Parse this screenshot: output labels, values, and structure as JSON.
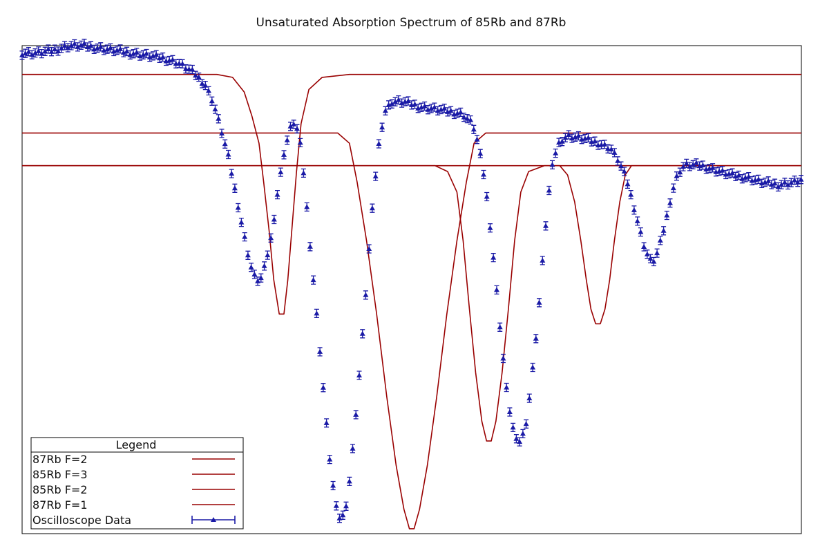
{
  "chart_data": {
    "type": "line",
    "title": "Unsaturated Absorption Spectrum of 85Rb and 87Rb",
    "xlabel": "",
    "ylabel": "",
    "xlim": [
      0,
      1
    ],
    "ylim": [
      0,
      1
    ],
    "x_ticks_shown": false,
    "y_ticks_shown": false,
    "grid": false,
    "legend": {
      "title": "Legend",
      "placement": "bottom-left",
      "entries": [
        "87Rb F=2",
        "85Rb F=3",
        "85Rb F=2",
        "87Rb F=1",
        "Oscilloscope Data"
      ]
    },
    "colors": {
      "fit": "#990000",
      "data": "#1a1aa6"
    },
    "series": [
      {
        "name": "87Rb F=2",
        "style": "line",
        "points": [
          [
            0.0,
            0.941
          ],
          [
            0.25,
            0.941
          ],
          [
            0.27,
            0.935
          ],
          [
            0.285,
            0.905
          ],
          [
            0.295,
            0.855
          ],
          [
            0.304,
            0.8
          ],
          [
            0.31,
            0.72
          ],
          [
            0.317,
            0.62
          ],
          [
            0.323,
            0.52
          ],
          [
            0.33,
            0.45
          ],
          [
            0.336,
            0.45
          ],
          [
            0.341,
            0.52
          ],
          [
            0.346,
            0.62
          ],
          [
            0.352,
            0.74
          ],
          [
            0.358,
            0.84
          ],
          [
            0.368,
            0.91
          ],
          [
            0.385,
            0.935
          ],
          [
            0.42,
            0.941
          ],
          [
            1.0,
            0.941
          ]
        ]
      },
      {
        "name": "85Rb F=3",
        "style": "line",
        "points": [
          [
            0.0,
            0.821
          ],
          [
            0.405,
            0.821
          ],
          [
            0.42,
            0.8
          ],
          [
            0.43,
            0.72
          ],
          [
            0.442,
            0.6
          ],
          [
            0.455,
            0.45
          ],
          [
            0.468,
            0.28
          ],
          [
            0.48,
            0.14
          ],
          [
            0.49,
            0.05
          ],
          [
            0.497,
            0.01
          ],
          [
            0.503,
            0.01
          ],
          [
            0.51,
            0.05
          ],
          [
            0.52,
            0.14
          ],
          [
            0.532,
            0.28
          ],
          [
            0.545,
            0.45
          ],
          [
            0.558,
            0.6
          ],
          [
            0.57,
            0.72
          ],
          [
            0.58,
            0.8
          ],
          [
            0.595,
            0.821
          ],
          [
            1.0,
            0.821
          ]
        ]
      },
      {
        "name": "85Rb F=2",
        "style": "line",
        "points": [
          [
            0.0,
            0.754
          ],
          [
            0.69,
            0.754
          ],
          [
            0.7,
            0.735
          ],
          [
            0.709,
            0.68
          ],
          [
            0.717,
            0.6
          ],
          [
            0.724,
            0.52
          ],
          [
            0.73,
            0.46
          ],
          [
            0.736,
            0.43
          ],
          [
            0.742,
            0.43
          ],
          [
            0.748,
            0.46
          ],
          [
            0.754,
            0.52
          ],
          [
            0.76,
            0.6
          ],
          [
            0.767,
            0.68
          ],
          [
            0.774,
            0.735
          ],
          [
            0.782,
            0.754
          ],
          [
            1.0,
            0.754
          ]
        ]
      },
      {
        "name": "87Rb F=1",
        "style": "line",
        "points": [
          [
            0.0,
            0.754
          ],
          [
            0.47,
            0.754
          ],
          [
            0.53,
            0.754
          ],
          [
            0.546,
            0.742
          ],
          [
            0.558,
            0.7
          ],
          [
            0.566,
            0.6
          ],
          [
            0.574,
            0.46
          ],
          [
            0.582,
            0.33
          ],
          [
            0.59,
            0.23
          ],
          [
            0.596,
            0.19
          ],
          [
            0.602,
            0.19
          ],
          [
            0.608,
            0.23
          ],
          [
            0.616,
            0.33
          ],
          [
            0.624,
            0.46
          ],
          [
            0.632,
            0.6
          ],
          [
            0.64,
            0.7
          ],
          [
            0.65,
            0.742
          ],
          [
            0.67,
            0.754
          ],
          [
            1.0,
            0.754
          ]
        ]
      },
      {
        "name": "Oscilloscope Data",
        "style": "points-with-error-bars",
        "points": [
          [
            0.0,
            0.985
          ],
          [
            0.02,
            0.985
          ],
          [
            0.04,
            0.99
          ],
          [
            0.06,
            1.0
          ],
          [
            0.08,
            1.0
          ],
          [
            0.1,
            0.995
          ],
          [
            0.12,
            0.99
          ],
          [
            0.14,
            0.985
          ],
          [
            0.16,
            0.98
          ],
          [
            0.18,
            0.975
          ],
          [
            0.2,
            0.965
          ],
          [
            0.22,
            0.945
          ],
          [
            0.235,
            0.92
          ],
          [
            0.245,
            0.885
          ],
          [
            0.255,
            0.83
          ],
          [
            0.265,
            0.77
          ],
          [
            0.275,
            0.69
          ],
          [
            0.285,
            0.61
          ],
          [
            0.293,
            0.55
          ],
          [
            0.3,
            0.52
          ],
          [
            0.306,
            0.52
          ],
          [
            0.312,
            0.55
          ],
          [
            0.32,
            0.61
          ],
          [
            0.328,
            0.7
          ],
          [
            0.336,
            0.78
          ],
          [
            0.344,
            0.83
          ],
          [
            0.35,
            0.845
          ],
          [
            0.356,
            0.81
          ],
          [
            0.362,
            0.73
          ],
          [
            0.368,
            0.62
          ],
          [
            0.375,
            0.5
          ],
          [
            0.382,
            0.38
          ],
          [
            0.388,
            0.27
          ],
          [
            0.393,
            0.18
          ],
          [
            0.398,
            0.11
          ],
          [
            0.402,
            0.06
          ],
          [
            0.406,
            0.035
          ],
          [
            0.41,
            0.03
          ],
          [
            0.414,
            0.045
          ],
          [
            0.418,
            0.08
          ],
          [
            0.423,
            0.15
          ],
          [
            0.428,
            0.24
          ],
          [
            0.434,
            0.35
          ],
          [
            0.44,
            0.47
          ],
          [
            0.446,
            0.6
          ],
          [
            0.452,
            0.71
          ],
          [
            0.458,
            0.8
          ],
          [
            0.465,
            0.865
          ],
          [
            0.475,
            0.885
          ],
          [
            0.49,
            0.885
          ],
          [
            0.51,
            0.875
          ],
          [
            0.53,
            0.87
          ],
          [
            0.55,
            0.865
          ],
          [
            0.565,
            0.86
          ],
          [
            0.578,
            0.84
          ],
          [
            0.585,
            0.8
          ],
          [
            0.592,
            0.74
          ],
          [
            0.598,
            0.67
          ],
          [
            0.604,
            0.58
          ],
          [
            0.61,
            0.48
          ],
          [
            0.616,
            0.38
          ],
          [
            0.622,
            0.29
          ],
          [
            0.628,
            0.23
          ],
          [
            0.634,
            0.19
          ],
          [
            0.64,
            0.19
          ],
          [
            0.646,
            0.22
          ],
          [
            0.652,
            0.29
          ],
          [
            0.658,
            0.38
          ],
          [
            0.664,
            0.48
          ],
          [
            0.67,
            0.6
          ],
          [
            0.676,
            0.7
          ],
          [
            0.682,
            0.77
          ],
          [
            0.69,
            0.805
          ],
          [
            0.7,
            0.815
          ],
          [
            0.72,
            0.81
          ],
          [
            0.74,
            0.8
          ],
          [
            0.755,
            0.79
          ],
          [
            0.765,
            0.765
          ],
          [
            0.775,
            0.73
          ],
          [
            0.785,
            0.67
          ],
          [
            0.793,
            0.62
          ],
          [
            0.8,
            0.58
          ],
          [
            0.806,
            0.56
          ],
          [
            0.812,
            0.56
          ],
          [
            0.818,
            0.59
          ],
          [
            0.826,
            0.64
          ],
          [
            0.834,
            0.7
          ],
          [
            0.842,
            0.74
          ],
          [
            0.85,
            0.755
          ],
          [
            0.87,
            0.755
          ],
          [
            0.89,
            0.745
          ],
          [
            0.91,
            0.735
          ],
          [
            0.93,
            0.73
          ],
          [
            0.95,
            0.72
          ],
          [
            0.97,
            0.715
          ],
          [
            0.99,
            0.72
          ],
          [
            1.0,
            0.725
          ]
        ]
      }
    ]
  }
}
